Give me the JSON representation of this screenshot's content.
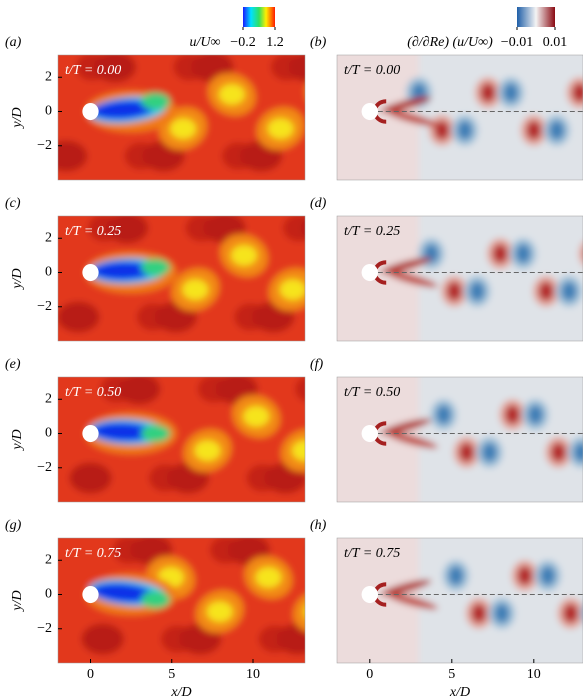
{
  "colorbars": [
    {
      "label": "u/U∞",
      "ticks": [
        {
          "value": -0.2,
          "label": "−0.2"
        },
        1.2
      ]
    },
    {
      "label": "(∂/∂Re) (u/U∞)",
      "ticks": [
        {
          "value": -0.01,
          "label": "−0.01"
        },
        0.01
      ]
    }
  ],
  "chart_data": [
    {
      "type": "contour",
      "field": "velocity",
      "panel_label": "(a)",
      "annotation": "t/T = 0.00",
      "ylabel": "y/D",
      "xlim": [
        -2,
        13.2
      ],
      "ylim": [
        -4,
        3.3
      ],
      "yticks": [
        2,
        0,
        {
          "value": -2,
          "label": "−2"
        }
      ]
    },
    {
      "type": "contour",
      "field": "sensitivity",
      "panel_label": "(b)",
      "annotation": "t/T = 0.00",
      "xlim": [
        -2,
        13
      ],
      "ylim": [
        -4,
        3.3
      ]
    },
    {
      "type": "contour",
      "field": "velocity",
      "panel_label": "(c)",
      "annotation": "t/T = 0.25",
      "ylabel": "y/D",
      "xlim": [
        -2,
        13.2
      ],
      "ylim": [
        -4,
        3.3
      ],
      "yticks": [
        2,
        0,
        {
          "value": -2,
          "label": "−2"
        }
      ]
    },
    {
      "type": "contour",
      "field": "sensitivity",
      "panel_label": "(d)",
      "annotation": "t/T = 0.25",
      "xlim": [
        -2,
        13
      ],
      "ylim": [
        -4,
        3.3
      ]
    },
    {
      "type": "contour",
      "field": "velocity",
      "panel_label": "(e)",
      "annotation": "t/T = 0.50",
      "ylabel": "y/D",
      "xlim": [
        -2,
        13.2
      ],
      "ylim": [
        -4,
        3.3
      ],
      "yticks": [
        2,
        0,
        {
          "value": -2,
          "label": "−2"
        }
      ]
    },
    {
      "type": "contour",
      "field": "sensitivity",
      "panel_label": "(f)",
      "annotation": "t/T = 0.50",
      "xlim": [
        -2,
        13
      ],
      "ylim": [
        -4,
        3.3
      ]
    },
    {
      "type": "contour",
      "field": "velocity",
      "panel_label": "(g)",
      "annotation": "t/T = 0.75",
      "ylabel": "y/D",
      "xlabel": "x/D",
      "xlim": [
        -2,
        13.2
      ],
      "ylim": [
        -4,
        3.3
      ],
      "xticks": [
        0,
        5,
        10
      ],
      "yticks": [
        2,
        0,
        {
          "value": -2,
          "label": "−2"
        }
      ]
    },
    {
      "type": "contour",
      "field": "sensitivity",
      "panel_label": "(h)",
      "annotation": "t/T = 0.75",
      "xlabel": "x/D",
      "xlim": [
        -2,
        13
      ],
      "ylim": [
        -4,
        3.3
      ],
      "xticks": [
        0,
        5,
        10
      ]
    }
  ]
}
